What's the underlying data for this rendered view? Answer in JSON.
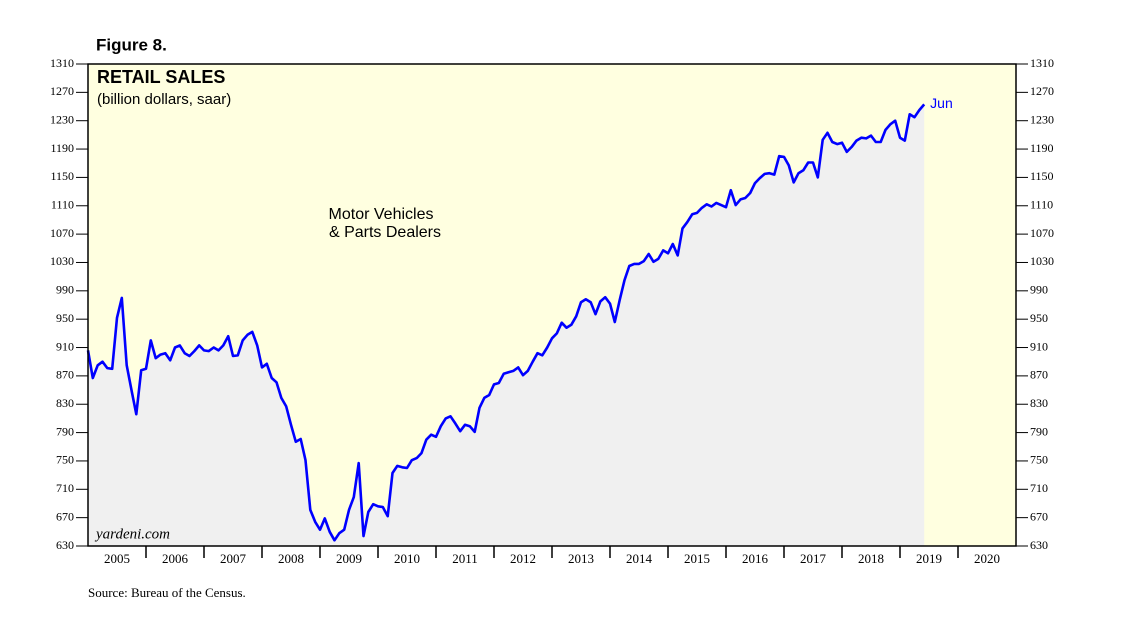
{
  "chart_data": {
    "type": "area-line",
    "figure_label": "Figure 8.",
    "title": "RETAIL SALES",
    "subtitle": "(billion dollars, saar)",
    "annotation": [
      "Motor Vehicles",
      "& Parts Dealers"
    ],
    "end_label": "Jun",
    "watermark": "yardeni.com",
    "source": "Source: Bureau of the Census.",
    "categories": [
      "2005",
      "2006",
      "2007",
      "2008",
      "2009",
      "2010",
      "2011",
      "2012",
      "2013",
      "2014",
      "2015",
      "2016",
      "2017",
      "2018",
      "2019",
      "2020"
    ],
    "xlim": [
      2005,
      2021
    ],
    "xticks": [
      2006,
      2007,
      2008,
      2009,
      2010,
      2011,
      2012,
      2013,
      2014,
      2015,
      2016,
      2017,
      2018,
      2019,
      2020
    ],
    "ylim": [
      630,
      1310
    ],
    "yticks": [
      630,
      670,
      710,
      750,
      790,
      830,
      870,
      910,
      950,
      990,
      1030,
      1070,
      1110,
      1150,
      1190,
      1230,
      1270,
      1310
    ],
    "color": "#0000ff",
    "background_color": "#ffffe0",
    "area_color": "#f0f0f0",
    "x": [
      2005,
      2005.083,
      2005.167,
      2005.25,
      2005.333,
      2005.417,
      2005.5,
      2005.583,
      2005.667,
      2005.75,
      2005.833,
      2005.917,
      2006,
      2006.083,
      2006.167,
      2006.25,
      2006.333,
      2006.417,
      2006.5,
      2006.583,
      2006.667,
      2006.75,
      2006.833,
      2006.917,
      2007,
      2007.083,
      2007.167,
      2007.25,
      2007.333,
      2007.417,
      2007.5,
      2007.583,
      2007.667,
      2007.75,
      2007.833,
      2007.917,
      2008,
      2008.083,
      2008.167,
      2008.25,
      2008.333,
      2008.417,
      2008.5,
      2008.583,
      2008.667,
      2008.75,
      2008.833,
      2008.917,
      2009,
      2009.083,
      2009.167,
      2009.25,
      2009.333,
      2009.417,
      2009.5,
      2009.583,
      2009.667,
      2009.75,
      2009.833,
      2009.917,
      2010,
      2010.083,
      2010.167,
      2010.25,
      2010.333,
      2010.417,
      2010.5,
      2010.583,
      2010.667,
      2010.75,
      2010.833,
      2010.917,
      2011,
      2011.083,
      2011.167,
      2011.25,
      2011.333,
      2011.417,
      2011.5,
      2011.583,
      2011.667,
      2011.75,
      2011.833,
      2011.917,
      2012,
      2012.083,
      2012.167,
      2012.25,
      2012.333,
      2012.417,
      2012.5,
      2012.583,
      2012.667,
      2012.75,
      2012.833,
      2012.917,
      2013,
      2013.083,
      2013.167,
      2013.25,
      2013.333,
      2013.417,
      2013.5,
      2013.583,
      2013.667,
      2013.75,
      2013.833,
      2013.917,
      2014,
      2014.083,
      2014.167,
      2014.25,
      2014.333,
      2014.417,
      2014.5,
      2014.583,
      2014.667,
      2014.75,
      2014.833,
      2014.917,
      2015,
      2015.083,
      2015.167,
      2015.25,
      2015.333,
      2015.417,
      2015.5,
      2015.583,
      2015.667,
      2015.75,
      2015.833,
      2015.917,
      2016,
      2016.083,
      2016.167,
      2016.25,
      2016.333,
      2016.417,
      2016.5,
      2016.583,
      2016.667,
      2016.75,
      2016.833,
      2016.917,
      2017,
      2017.083,
      2017.167,
      2017.25,
      2017.333,
      2017.417,
      2017.5,
      2017.583,
      2017.667,
      2017.75,
      2017.833,
      2017.917,
      2018,
      2018.083,
      2018.167,
      2018.25,
      2018.333,
      2018.417,
      2018.5,
      2018.583,
      2018.667,
      2018.75,
      2018.833,
      2018.917,
      2019,
      2019.083,
      2019.167,
      2019.25,
      2019.333,
      2019.417
    ],
    "values": [
      906,
      867,
      885,
      890,
      881,
      880,
      952,
      980,
      885,
      850,
      816,
      878,
      880,
      920,
      895,
      900,
      902,
      892,
      910,
      913,
      902,
      898,
      905,
      913,
      906,
      905,
      910,
      906,
      913,
      926,
      898,
      899,
      920,
      928,
      932,
      913,
      882,
      887,
      867,
      861,
      839,
      827,
      801,
      777,
      781,
      751,
      681,
      664,
      653,
      669,
      650,
      638,
      648,
      653,
      681,
      699,
      747,
      644,
      678,
      689,
      686,
      685,
      672,
      733,
      743,
      741,
      740,
      751,
      754,
      761,
      780,
      787,
      784,
      799,
      810,
      813,
      803,
      792,
      801,
      799,
      791,
      825,
      839,
      843,
      858,
      860,
      873,
      875,
      877,
      882,
      871,
      877,
      890,
      902,
      899,
      910,
      923,
      930,
      945,
      938,
      942,
      954,
      974,
      978,
      974,
      957,
      975,
      981,
      972,
      946,
      977,
      1005,
      1025,
      1028,
      1028,
      1032,
      1042,
      1031,
      1035,
      1047,
      1043,
      1056,
      1040,
      1078,
      1087,
      1098,
      1100,
      1107,
      1112,
      1109,
      1114,
      1111,
      1108,
      1132,
      1111,
      1119,
      1121,
      1128,
      1142,
      1149,
      1155,
      1156,
      1154,
      1180,
      1179,
      1167,
      1143,
      1156,
      1160,
      1171,
      1171,
      1150,
      1203,
      1213,
      1200,
      1197,
      1199,
      1186,
      1193,
      1202,
      1206,
      1205,
      1209,
      1200,
      1200,
      1217,
      1225,
      1230,
      1206,
      1202,
      1239,
      1235,
      1245,
      1253
    ]
  }
}
